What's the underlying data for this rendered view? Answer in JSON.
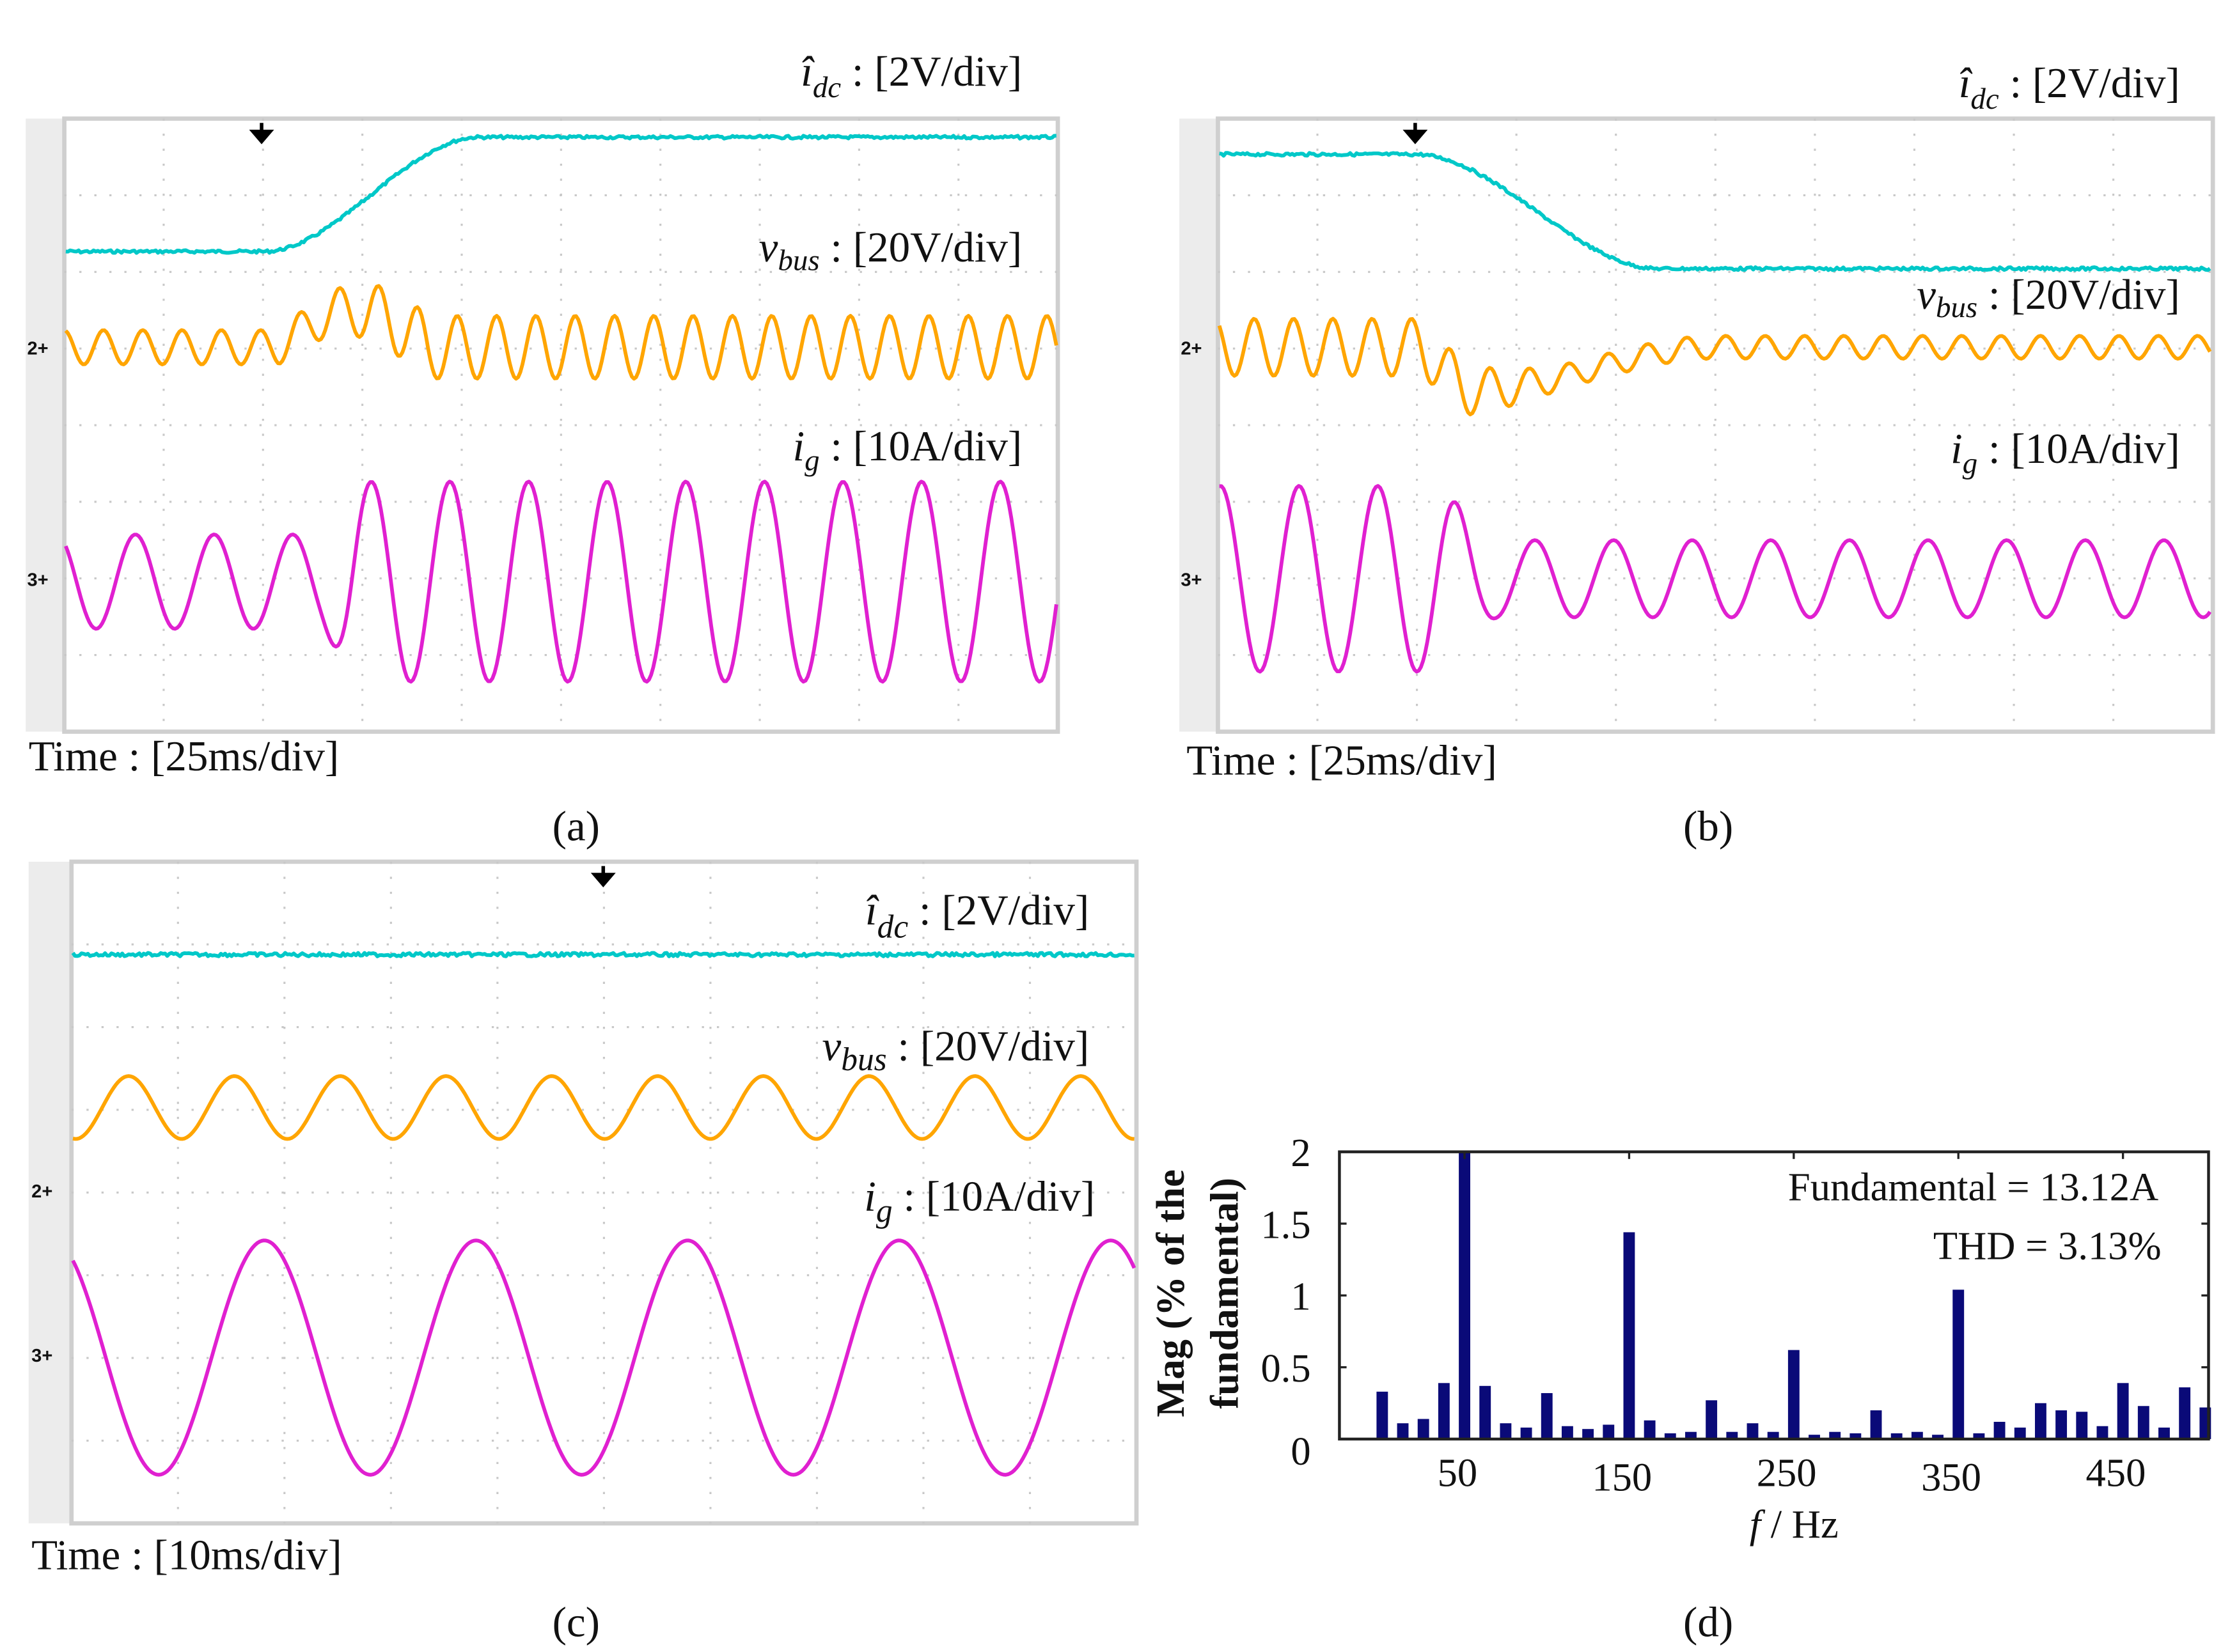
{
  "colors": {
    "idc": "#00c8c8",
    "vbus": "#ffa500",
    "ig": "#e020d0",
    "bars": "#0a0a78",
    "marker2": "#00c0d0",
    "marker3": "#ff8c00"
  },
  "panels": {
    "a": {
      "caption": "(a)",
      "time": "Time : [25ms/div]",
      "idc": {
        "sym": "î",
        "sub": "dc",
        "scale": " : [2V/div]"
      },
      "vbus": {
        "sym": "v",
        "sub": "bus",
        "scale": " : [20V/div]"
      },
      "ig": {
        "sym": "i",
        "sub": "g",
        "scale": " : [10A/div]"
      },
      "marker2": "2+",
      "marker3": "3+"
    },
    "b": {
      "caption": "(b)",
      "time": "Time : [25ms/div]",
      "idc": {
        "sym": "î",
        "sub": "dc",
        "scale": " : [2V/div]"
      },
      "vbus": {
        "sym": "v",
        "sub": "bus",
        "scale": " : [20V/div]"
      },
      "ig": {
        "sym": "i",
        "sub": "g",
        "scale": " : [10A/div]"
      },
      "marker2": "2+",
      "marker3": "3+"
    },
    "c": {
      "caption": "(c)",
      "time": "Time : [10ms/div]",
      "idc": {
        "sym": "î",
        "sub": "dc",
        "scale": " : [2V/div]"
      },
      "vbus": {
        "sym": "v",
        "sub": "bus",
        "scale": " : [20V/div]"
      },
      "ig": {
        "sym": "i",
        "sub": "g",
        "scale": " : [10A/div]"
      },
      "marker2": "2+",
      "marker3": "3+"
    },
    "d": {
      "caption": "(d)"
    }
  },
  "chart_data": {
    "type": "bar",
    "title": "",
    "xlabel_italic": "f",
    "xlabel_rest": " / Hz",
    "ylabel_line1": "Mag (% of the",
    "ylabel_line2": "fundamental)",
    "annotation1": "Fundamental = 13.12A",
    "annotation2": "THD =  3.13%",
    "xlim": [
      -26,
      502
    ],
    "ylim": [
      0,
      2
    ],
    "xticks": [
      "50",
      "150",
      "250",
      "350",
      "450"
    ],
    "yticks": [
      "0",
      "0.5",
      "1",
      "1.5",
      "2"
    ],
    "x": [
      0,
      12.5,
      25,
      37.5,
      50,
      62.5,
      75,
      87.5,
      100,
      112.5,
      125,
      137.5,
      150,
      162.5,
      175,
      187.5,
      200,
      212.5,
      225,
      237.5,
      250,
      262.5,
      275,
      287.5,
      300,
      312.5,
      325,
      337.5,
      350,
      362.5,
      375,
      387.5,
      400,
      412.5,
      425,
      437.5,
      450,
      462.5,
      475,
      487.5,
      500
    ],
    "values": [
      0.33,
      0.11,
      0.14,
      0.39,
      2.0,
      0.37,
      0.11,
      0.08,
      0.32,
      0.09,
      0.07,
      0.1,
      1.44,
      0.13,
      0.04,
      0.05,
      0.27,
      0.05,
      0.11,
      0.05,
      0.62,
      0.03,
      0.05,
      0.04,
      0.2,
      0.04,
      0.05,
      0.03,
      1.04,
      0.04,
      0.12,
      0.08,
      0.25,
      0.2,
      0.19,
      0.09,
      0.39,
      0.23,
      0.08,
      0.36,
      0.22
    ]
  }
}
